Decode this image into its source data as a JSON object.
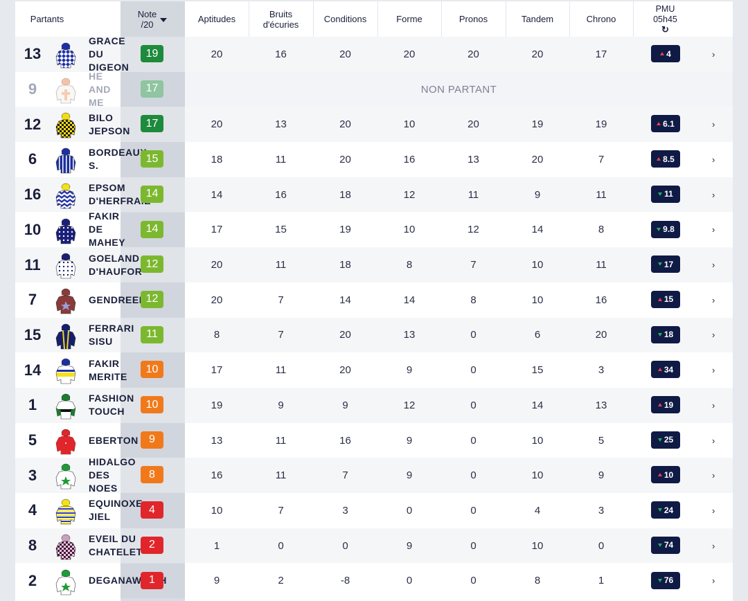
{
  "header": {
    "partants": "Partants",
    "note": "Note\n/20",
    "aptitudes": "Aptitudes",
    "bruits": "Bruits\nd'écuries",
    "conditions": "Conditions",
    "forme": "Forme",
    "pronos": "Pronos",
    "tandem": "Tandem",
    "chrono": "Chrono",
    "pmu": "PMU\n05h45",
    "refresh_icon": "↻"
  },
  "colors": {
    "note_high": "#1e8a3c",
    "note_mid": "#7cb82f",
    "note_low": "#f07a1b",
    "note_bad": "#e0262b",
    "pmu_bg": "#0f1a45"
  },
  "non_partant_label": "NON PARTANT",
  "rows": [
    {
      "num": "13",
      "name": "GRACE\nDU\nDIGEON",
      "silk": "blue-white-diamonds",
      "note": "19",
      "level": "high",
      "aptitudes": "20",
      "bruits": "16",
      "conditions": "20",
      "forme": "20",
      "pronos": "20",
      "tandem": "20",
      "chrono": "17",
      "pmu": "4",
      "trend": "up"
    },
    {
      "num": "9",
      "name": "HE\nAND\nME",
      "silk": "orange-cross",
      "note": "17",
      "level": "np",
      "non_partant": true
    },
    {
      "num": "12",
      "name": "BILO\nJEPSON",
      "silk": "yellow-black-check",
      "note": "17",
      "level": "high",
      "aptitudes": "20",
      "bruits": "13",
      "conditions": "20",
      "forme": "10",
      "pronos": "20",
      "tandem": "19",
      "chrono": "19",
      "pmu": "6.1",
      "trend": "up"
    },
    {
      "num": "6",
      "name": "BORDEAUX\nS.",
      "silk": "blue-white-stripes",
      "note": "15",
      "level": "mid",
      "aptitudes": "18",
      "bruits": "11",
      "conditions": "20",
      "forme": "16",
      "pronos": "13",
      "tandem": "20",
      "chrono": "7",
      "pmu": "8.5",
      "trend": "up"
    },
    {
      "num": "16",
      "name": "EPSOM\nD'HERFRAIE",
      "silk": "blue-white-chevrons",
      "note": "14",
      "level": "mid",
      "aptitudes": "14",
      "bruits": "16",
      "conditions": "18",
      "forme": "12",
      "pronos": "11",
      "tandem": "9",
      "chrono": "11",
      "pmu": "11",
      "trend": "down"
    },
    {
      "num": "10",
      "name": "FAKIR\nDE\nMAHEY",
      "silk": "navy-white-stars",
      "note": "14",
      "level": "mid",
      "aptitudes": "17",
      "bruits": "15",
      "conditions": "19",
      "forme": "10",
      "pronos": "12",
      "tandem": "14",
      "chrono": "8",
      "pmu": "9.8",
      "trend": "down"
    },
    {
      "num": "11",
      "name": "GOELAND\nD'HAUFOR",
      "silk": "white-navy-dots",
      "note": "12",
      "level": "mid",
      "aptitudes": "20",
      "bruits": "11",
      "conditions": "18",
      "forme": "8",
      "pronos": "7",
      "tandem": "10",
      "chrono": "11",
      "pmu": "17",
      "trend": "down"
    },
    {
      "num": "7",
      "name": "GENDREEN",
      "silk": "maroon-star",
      "note": "12",
      "level": "mid",
      "aptitudes": "20",
      "bruits": "7",
      "conditions": "14",
      "forme": "14",
      "pronos": "8",
      "tandem": "10",
      "chrono": "16",
      "pmu": "15",
      "trend": "up"
    },
    {
      "num": "15",
      "name": "FERRARI\nSISU",
      "silk": "navy-yellow-braces",
      "note": "11",
      "level": "mid",
      "aptitudes": "8",
      "bruits": "7",
      "conditions": "20",
      "forme": "13",
      "pronos": "0",
      "tandem": "6",
      "chrono": "20",
      "pmu": "18",
      "trend": "down"
    },
    {
      "num": "14",
      "name": "FAKIR\nMERITE",
      "silk": "blue-yellow-band",
      "note": "10",
      "level": "low",
      "aptitudes": "17",
      "bruits": "11",
      "conditions": "20",
      "forme": "9",
      "pronos": "0",
      "tandem": "15",
      "chrono": "3",
      "pmu": "34",
      "trend": "up"
    },
    {
      "num": "1",
      "name": "FASHION\nTOUCH",
      "silk": "green-white-black",
      "note": "10",
      "level": "low",
      "aptitudes": "19",
      "bruits": "9",
      "conditions": "9",
      "forme": "12",
      "pronos": "0",
      "tandem": "14",
      "chrono": "13",
      "pmu": "19",
      "trend": "up"
    },
    {
      "num": "5",
      "name": "EBERTON",
      "silk": "red-plain",
      "note": "9",
      "level": "low",
      "aptitudes": "13",
      "bruits": "11",
      "conditions": "16",
      "forme": "9",
      "pronos": "0",
      "tandem": "10",
      "chrono": "5",
      "pmu": "25",
      "trend": "down"
    },
    {
      "num": "3",
      "name": "HIDALGO\nDES\nNOES",
      "silk": "white-green-star",
      "note": "8",
      "level": "low",
      "aptitudes": "16",
      "bruits": "11",
      "conditions": "7",
      "forme": "9",
      "pronos": "0",
      "tandem": "10",
      "chrono": "9",
      "pmu": "10",
      "trend": "up"
    },
    {
      "num": "4",
      "name": "EQUINOXE\nJIEL",
      "silk": "yellow-blue-hoops",
      "note": "4",
      "level": "bad",
      "aptitudes": "10",
      "bruits": "7",
      "conditions": "3",
      "forme": "0",
      "pronos": "0",
      "tandem": "4",
      "chrono": "3",
      "pmu": "24",
      "trend": "down"
    },
    {
      "num": "8",
      "name": "EVEIL DU\nCHATELET",
      "silk": "pink-black-check",
      "note": "2",
      "level": "bad",
      "aptitudes": "1",
      "bruits": "0",
      "conditions": "0",
      "forme": "9",
      "pronos": "0",
      "tandem": "10",
      "chrono": "0",
      "pmu": "74",
      "trend": "down"
    },
    {
      "num": "2",
      "name": "DEGANAWIDAH",
      "silk": "white-green-star",
      "note": "1",
      "level": "bad",
      "aptitudes": "9",
      "bruits": "2",
      "conditions": "-8",
      "forme": "0",
      "pronos": "0",
      "tandem": "8",
      "chrono": "1",
      "pmu": "76",
      "trend": "down"
    }
  ]
}
